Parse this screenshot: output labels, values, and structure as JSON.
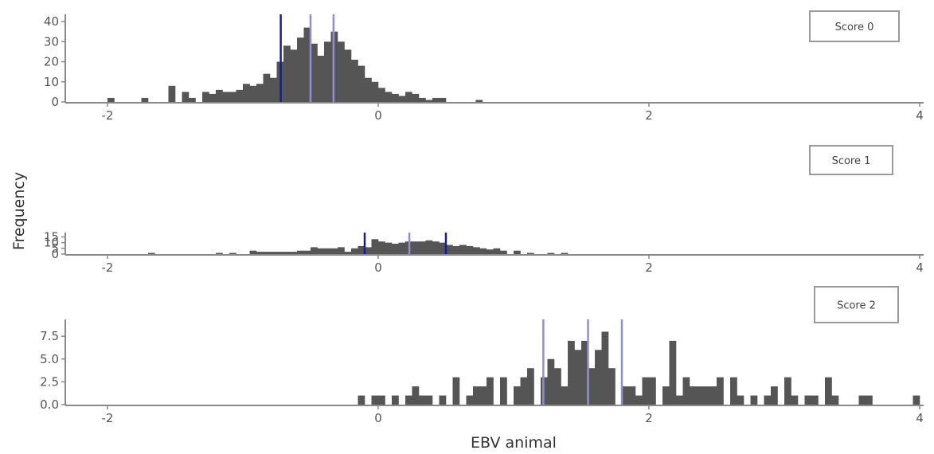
{
  "chart_data": {
    "type": "bar",
    "kind": "histogram",
    "xlabel": "EBV animal",
    "ylabel": "Frequency",
    "xlim": [
      -2,
      4
    ],
    "xticks": [
      -2,
      0,
      2,
      4
    ],
    "xtick_labels": [
      "-2",
      "0",
      "2",
      "4"
    ],
    "grid": false,
    "bar_color": "#555555",
    "line_color_dark": "#1a1aa0",
    "line_color_light": "#8f8fd8",
    "panels": [
      {
        "legend": "Score 0",
        "ylim": [
          0,
          42
        ],
        "yticks": [
          0,
          10,
          20,
          30,
          40
        ],
        "ytick_labels": [
          "0",
          "10",
          "20",
          "30",
          "40"
        ],
        "vlines": [
          {
            "x": -0.72,
            "style": "dark"
          },
          {
            "x": -0.5,
            "style": "light"
          },
          {
            "x": -0.33,
            "style": "light"
          }
        ],
        "bins": [
          [
            -2.0,
            2
          ],
          [
            -1.75,
            2
          ],
          [
            -1.55,
            8
          ],
          [
            -1.45,
            5
          ],
          [
            -1.4,
            2
          ],
          [
            -1.3,
            5
          ],
          [
            -1.25,
            4
          ],
          [
            -1.2,
            6
          ],
          [
            -1.15,
            5
          ],
          [
            -1.1,
            5
          ],
          [
            -1.05,
            6
          ],
          [
            -1.0,
            9
          ],
          [
            -0.95,
            8
          ],
          [
            -0.9,
            9
          ],
          [
            -0.85,
            14
          ],
          [
            -0.8,
            12
          ],
          [
            -0.75,
            20
          ],
          [
            -0.7,
            28
          ],
          [
            -0.65,
            26
          ],
          [
            -0.6,
            32
          ],
          [
            -0.55,
            37
          ],
          [
            -0.5,
            29
          ],
          [
            -0.45,
            23
          ],
          [
            -0.4,
            30
          ],
          [
            -0.35,
            35
          ],
          [
            -0.3,
            30
          ],
          [
            -0.25,
            26
          ],
          [
            -0.2,
            21
          ],
          [
            -0.15,
            18
          ],
          [
            -0.1,
            12
          ],
          [
            -0.05,
            10
          ],
          [
            0.0,
            7
          ],
          [
            0.05,
            5
          ],
          [
            0.1,
            4
          ],
          [
            0.15,
            3
          ],
          [
            0.2,
            5
          ],
          [
            0.25,
            4
          ],
          [
            0.3,
            2
          ],
          [
            0.35,
            1
          ],
          [
            0.4,
            2
          ],
          [
            0.45,
            2
          ],
          [
            0.72,
            1
          ]
        ]
      },
      {
        "legend": "Score 1",
        "ylim": [
          0,
          16
        ],
        "yticks": [
          0,
          5,
          10,
          15
        ],
        "ytick_labels": [
          "0",
          "5",
          "10",
          "15"
        ],
        "vlines": [
          {
            "x": -0.1,
            "style": "dark"
          },
          {
            "x": 0.23,
            "style": "light"
          },
          {
            "x": 0.5,
            "style": "dark"
          }
        ],
        "bins": [
          [
            -1.7,
            1
          ],
          [
            -1.2,
            1
          ],
          [
            -1.1,
            1
          ],
          [
            -0.95,
            3
          ],
          [
            -0.9,
            2
          ],
          [
            -0.85,
            2
          ],
          [
            -0.8,
            2
          ],
          [
            -0.75,
            2
          ],
          [
            -0.7,
            2
          ],
          [
            -0.65,
            2
          ],
          [
            -0.6,
            3
          ],
          [
            -0.55,
            3
          ],
          [
            -0.5,
            6
          ],
          [
            -0.45,
            5
          ],
          [
            -0.4,
            5
          ],
          [
            -0.35,
            5
          ],
          [
            -0.3,
            6
          ],
          [
            -0.25,
            2
          ],
          [
            -0.2,
            5
          ],
          [
            -0.15,
            7
          ],
          [
            -0.1,
            6
          ],
          [
            -0.05,
            13
          ],
          [
            0.0,
            11
          ],
          [
            0.05,
            10
          ],
          [
            0.1,
            9
          ],
          [
            0.15,
            10
          ],
          [
            0.2,
            11
          ],
          [
            0.25,
            11
          ],
          [
            0.3,
            11
          ],
          [
            0.35,
            12
          ],
          [
            0.4,
            11
          ],
          [
            0.45,
            10
          ],
          [
            0.5,
            8
          ],
          [
            0.55,
            7
          ],
          [
            0.6,
            8
          ],
          [
            0.65,
            7
          ],
          [
            0.7,
            6
          ],
          [
            0.75,
            5
          ],
          [
            0.8,
            4
          ],
          [
            0.85,
            5
          ],
          [
            0.9,
            3
          ],
          [
            1.0,
            3
          ],
          [
            1.1,
            1
          ],
          [
            1.25,
            1
          ],
          [
            1.35,
            1
          ]
        ]
      },
      {
        "legend": "Score 2",
        "ylim": [
          0,
          9
        ],
        "yticks": [
          0,
          2.5,
          5,
          7.5
        ],
        "ytick_labels": [
          "0.0",
          "2.5",
          "5.0",
          "7.5"
        ],
        "vlines": [
          {
            "x": 1.22,
            "style": "light"
          },
          {
            "x": 1.55,
            "style": "light"
          },
          {
            "x": 1.8,
            "style": "light"
          }
        ],
        "bins": [
          [
            -0.15,
            1
          ],
          [
            -0.05,
            1
          ],
          [
            0.0,
            1
          ],
          [
            0.1,
            1
          ],
          [
            0.2,
            1
          ],
          [
            0.25,
            2
          ],
          [
            0.3,
            1
          ],
          [
            0.35,
            1
          ],
          [
            0.45,
            1
          ],
          [
            0.55,
            3
          ],
          [
            0.65,
            1
          ],
          [
            0.7,
            2
          ],
          [
            0.75,
            2
          ],
          [
            0.8,
            3
          ],
          [
            0.9,
            3
          ],
          [
            1.0,
            2
          ],
          [
            1.05,
            3
          ],
          [
            1.1,
            4
          ],
          [
            1.2,
            3
          ],
          [
            1.25,
            5
          ],
          [
            1.3,
            4
          ],
          [
            1.35,
            2
          ],
          [
            1.4,
            7
          ],
          [
            1.45,
            6
          ],
          [
            1.5,
            7
          ],
          [
            1.55,
            4
          ],
          [
            1.6,
            6
          ],
          [
            1.65,
            8
          ],
          [
            1.7,
            4
          ],
          [
            1.8,
            2
          ],
          [
            1.85,
            2
          ],
          [
            1.9,
            1
          ],
          [
            1.95,
            3
          ],
          [
            2.0,
            3
          ],
          [
            2.1,
            2
          ],
          [
            2.15,
            7
          ],
          [
            2.2,
            1
          ],
          [
            2.25,
            3
          ],
          [
            2.3,
            2
          ],
          [
            2.35,
            2
          ],
          [
            2.4,
            2
          ],
          [
            2.45,
            2
          ],
          [
            2.5,
            3
          ],
          [
            2.6,
            3
          ],
          [
            2.65,
            1
          ],
          [
            2.75,
            1
          ],
          [
            2.85,
            1
          ],
          [
            2.9,
            2
          ],
          [
            3.0,
            3
          ],
          [
            3.05,
            1
          ],
          [
            3.15,
            1
          ],
          [
            3.2,
            1
          ],
          [
            3.3,
            3
          ],
          [
            3.35,
            1
          ],
          [
            3.55,
            1
          ],
          [
            3.6,
            1
          ],
          [
            3.95,
            1
          ]
        ]
      }
    ]
  }
}
